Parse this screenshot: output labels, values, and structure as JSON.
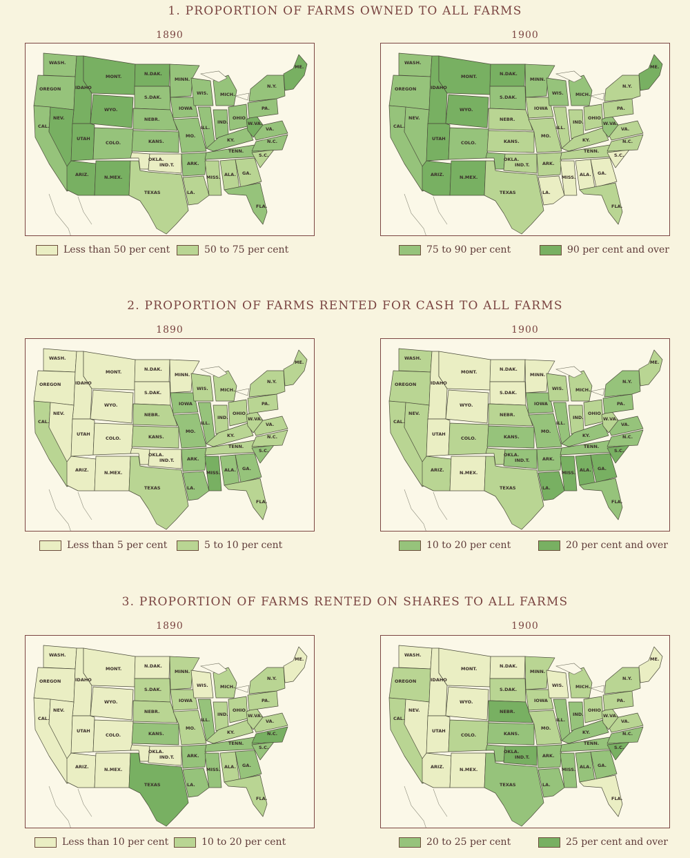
{
  "palette": {
    "c1": "#eaeec3",
    "c2": "#b9d593",
    "c3": "#96c37b",
    "c4": "#78b062"
  },
  "sections": [
    {
      "title": "1. PROPORTION OF FARMS OWNED TO ALL FARMS",
      "year_left": "1890",
      "year_right": "1900",
      "legend": [
        "Less than 50 per cent",
        "50 to 75 per cent",
        "75 to 90 per cent",
        "90 per cent and over"
      ]
    },
    {
      "title": "2. PROPORTION OF FARMS RENTED FOR CASH TO ALL FARMS",
      "year_left": "1890",
      "year_right": "1900",
      "legend": [
        "Less than 5 per cent",
        "5 to 10 per cent",
        "10 to 20 per cent",
        "20 per cent and over"
      ]
    },
    {
      "title": "3. PROPORTION OF FARMS RENTED ON SHARES TO ALL FARMS",
      "year_left": "1890",
      "year_right": "1900",
      "legend": [
        "Less than 10 per cent",
        "10 to 20 per cent",
        "20 to 25 per cent",
        "25 per cent and over"
      ]
    }
  ],
  "state_labels": [
    "WASH.",
    "OREGON",
    "CAL.",
    "IDAHO",
    "NEV.",
    "MONT.",
    "WYO.",
    "UTAH",
    "ARIZ.",
    "COLO.",
    "N.MEX.",
    "N.DAK.",
    "S.DAK.",
    "NEBR.",
    "KANS.",
    "OKLA.",
    "IND.T.",
    "TEXAS",
    "MINN.",
    "IOWA",
    "MO.",
    "ARK.",
    "LA.",
    "WIS.",
    "ILL.",
    "MICH.",
    "IND.",
    "OHIO",
    "KY.",
    "TENN.",
    "MISS.",
    "ALA.",
    "GA.",
    "FLA.",
    "S.C.",
    "N.C.",
    "VA.",
    "W.VA.",
    "PA.",
    "N.Y.",
    "ME."
  ],
  "maps": [
    {
      "id": "owned-1890",
      "fills": {
        "WA": 2,
        "OR": 2,
        "CA": 2,
        "ID": 3,
        "NV": 3,
        "MT": 3,
        "WY": 3,
        "UT": 3,
        "AZ": 3,
        "CO": 2,
        "NM": 3,
        "ND": 3,
        "SD": 2,
        "NE": 2,
        "KS": 2,
        "OK": 0,
        "IT": 0,
        "TX": 1,
        "MN": 2,
        "IA": 2,
        "MO": 2,
        "AR": 2,
        "LA": 1,
        "WI": 2,
        "IL": 2,
        "MI": 2,
        "IN": 2,
        "OH": 2,
        "KY": 2,
        "TN": 2,
        "MS": 1,
        "AL": 1,
        "GA": 1,
        "FL": 2,
        "SC": 1,
        "NC": 2,
        "VA": 2,
        "WV": 3,
        "PA": 2,
        "NY": 2,
        "NE_US": 3
      }
    },
    {
      "id": "owned-1900",
      "fills": {
        "WA": 2,
        "OR": 2,
        "CA": 2,
        "ID": 3,
        "NV": 2,
        "MT": 3,
        "WY": 3,
        "UT": 3,
        "AZ": 3,
        "CO": 2,
        "NM": 3,
        "ND": 3,
        "SD": 2,
        "NE": 1,
        "KS": 1,
        "OK": 2,
        "IT": 1,
        "TX": 1,
        "MN": 2,
        "IA": 1,
        "MO": 1,
        "AR": 1,
        "LA": 0,
        "WI": 2,
        "IL": 1,
        "MI": 2,
        "IN": 1,
        "OH": 1,
        "KY": 1,
        "TN": 1,
        "MS": 0,
        "AL": 0,
        "GA": 0,
        "FL": 1,
        "SC": 0,
        "NC": 1,
        "VA": 1,
        "WV": 2,
        "PA": 1,
        "NY": 1,
        "NE_US": 3
      }
    },
    {
      "id": "cash-1890",
      "fills": {
        "WA": 0,
        "OR": 0,
        "CA": 1,
        "ID": 0,
        "NV": 0,
        "MT": 0,
        "WY": 0,
        "UT": 0,
        "AZ": 0,
        "CO": 0,
        "NM": 0,
        "ND": 0,
        "SD": 0,
        "NE": 1,
        "KS": 1,
        "OK": 0,
        "IT": 0,
        "TX": 1,
        "MN": 0,
        "IA": 2,
        "MO": 2,
        "AR": 2,
        "LA": 2,
        "WI": 1,
        "IL": 2,
        "MI": 1,
        "IN": 1,
        "OH": 1,
        "KY": 1,
        "TN": 1,
        "MS": 3,
        "AL": 2,
        "GA": 2,
        "FL": 1,
        "SC": 2,
        "NC": 1,
        "VA": 1,
        "WV": 1,
        "PA": 1,
        "NY": 1,
        "NE_US": 1
      }
    },
    {
      "id": "cash-1900",
      "fills": {
        "WA": 1,
        "OR": 1,
        "CA": 1,
        "ID": 0,
        "NV": 1,
        "MT": 0,
        "WY": 0,
        "UT": 0,
        "AZ": 1,
        "CO": 1,
        "NM": 0,
        "ND": 0,
        "SD": 0,
        "NE": 1,
        "KS": 2,
        "OK": 1,
        "IT": 2,
        "TX": 1,
        "MN": 0,
        "IA": 2,
        "MO": 2,
        "AR": 2,
        "LA": 3,
        "WI": 1,
        "IL": 2,
        "MI": 1,
        "IN": 1,
        "OH": 1,
        "KY": 2,
        "TN": 2,
        "MS": 3,
        "AL": 3,
        "GA": 3,
        "FL": 2,
        "SC": 3,
        "NC": 2,
        "VA": 2,
        "WV": 1,
        "PA": 2,
        "NY": 2,
        "NE_US": 1
      }
    },
    {
      "id": "shares-1890",
      "fills": {
        "WA": 0,
        "OR": 0,
        "CA": 0,
        "ID": 0,
        "NV": 0,
        "MT": 0,
        "WY": 0,
        "UT": 0,
        "AZ": 0,
        "CO": 0,
        "NM": 0,
        "ND": 0,
        "SD": 1,
        "NE": 1,
        "KS": 2,
        "OK": 0,
        "IT": 0,
        "TX": 3,
        "MN": 1,
        "IA": 1,
        "MO": 1,
        "AR": 2,
        "LA": 2,
        "WI": 0,
        "IL": 2,
        "MI": 1,
        "IN": 1,
        "OH": 1,
        "KY": 1,
        "TN": 2,
        "MS": 2,
        "AL": 1,
        "GA": 2,
        "FL": 1,
        "SC": 2,
        "NC": 3,
        "VA": 1,
        "WV": 1,
        "PA": 1,
        "NY": 1,
        "NE_US": 0
      }
    },
    {
      "id": "shares-1900",
      "fills": {
        "WA": 0,
        "OR": 1,
        "CA": 1,
        "ID": 0,
        "NV": 0,
        "MT": 0,
        "WY": 0,
        "UT": 0,
        "AZ": 0,
        "CO": 1,
        "NM": 0,
        "ND": 0,
        "SD": 1,
        "NE": 3,
        "KS": 2,
        "OK": 2,
        "IT": 3,
        "TX": 2,
        "MN": 1,
        "IA": 1,
        "MO": 1,
        "AR": 2,
        "LA": 2,
        "WI": 0,
        "IL": 2,
        "MI": 1,
        "IN": 2,
        "OH": 1,
        "KY": 2,
        "TN": 2,
        "MS": 2,
        "AL": 2,
        "GA": 2,
        "FL": 0,
        "SC": 3,
        "NC": 2,
        "VA": 1,
        "WV": 1,
        "PA": 1,
        "NY": 1,
        "NE_US": 0
      }
    }
  ]
}
